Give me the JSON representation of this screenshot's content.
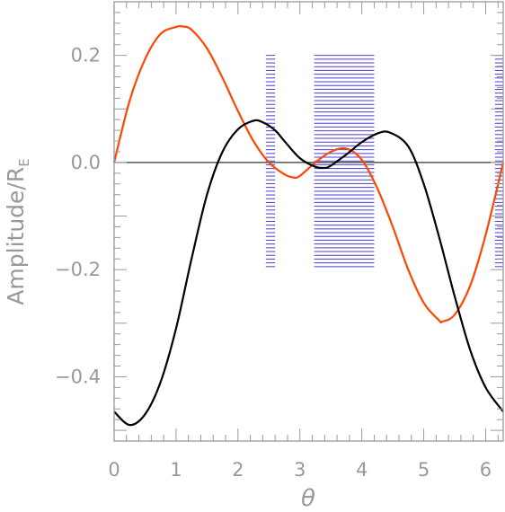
{
  "chart_data": {
    "type": "line",
    "xlabel": "θ",
    "ylabel": "Amplitude/R",
    "ylabel_subscript": "E",
    "xlim": [
      0,
      6.2832
    ],
    "ylim": [
      -0.52,
      0.3
    ],
    "x_ticks": [
      0,
      1,
      2,
      3,
      4,
      5,
      6
    ],
    "x_tick_labels": [
      "0",
      "1",
      "2",
      "3",
      "4",
      "5",
      "6"
    ],
    "y_ticks": [
      0.2,
      0.0,
      -0.2,
      -0.4
    ],
    "y_tick_labels": [
      "0.2",
      "0.0",
      "−0.2",
      "−0.4"
    ],
    "grid": false,
    "zero_line": 0,
    "colors": {
      "series_black": "#000000",
      "series_orange": "#ff4500",
      "hatch": "#4a3fd0",
      "axes": "#999999"
    },
    "series": [
      {
        "color": "#ff4500",
        "x": [
          0,
          0.25,
          0.5,
          0.75,
          1.0,
          1.1,
          1.25,
          1.5,
          1.75,
          2.0,
          2.25,
          2.5,
          2.75,
          2.9,
          3.0,
          3.25,
          3.5,
          3.75,
          4.0,
          4.25,
          4.5,
          4.75,
          5.0,
          5.25,
          5.3,
          5.5,
          5.75,
          6.0,
          6.2832
        ],
        "y": [
          0.0,
          0.115,
          0.193,
          0.24,
          0.253,
          0.254,
          0.248,
          0.213,
          0.158,
          0.096,
          0.04,
          0.0,
          -0.022,
          -0.028,
          -0.025,
          0.0,
          0.02,
          0.026,
          0.005,
          -0.048,
          -0.12,
          -0.2,
          -0.262,
          -0.295,
          -0.297,
          -0.284,
          -0.23,
          -0.135,
          0.0
        ]
      },
      {
        "color": "#000000",
        "x": [
          0,
          0.25,
          0.5,
          0.75,
          1.0,
          1.25,
          1.5,
          1.75,
          2.0,
          2.25,
          2.4,
          2.6,
          2.75,
          3.0,
          3.25,
          3.4,
          3.5,
          3.75,
          4.0,
          4.25,
          4.45,
          4.75,
          5.0,
          5.25,
          5.5,
          5.75,
          6.0,
          6.2832
        ],
        "y": [
          -0.465,
          -0.49,
          -0.47,
          -0.41,
          -0.31,
          -0.18,
          -0.06,
          0.02,
          0.062,
          0.078,
          0.075,
          0.06,
          0.04,
          0.008,
          -0.008,
          -0.01,
          -0.006,
          0.015,
          0.038,
          0.054,
          0.056,
          0.03,
          -0.04,
          -0.14,
          -0.25,
          -0.35,
          -0.42,
          -0.465
        ]
      }
    ],
    "hatched_bands": [
      {
        "x_start": 2.45,
        "x_end": 2.6,
        "y_start": -0.2,
        "y_end": 0.2
      },
      {
        "x_start": 3.23,
        "x_end": 4.2,
        "y_start": -0.2,
        "y_end": 0.2
      },
      {
        "x_start": 6.15,
        "x_end": 6.2832,
        "y_start": -0.2,
        "y_end": 0.2
      }
    ]
  }
}
